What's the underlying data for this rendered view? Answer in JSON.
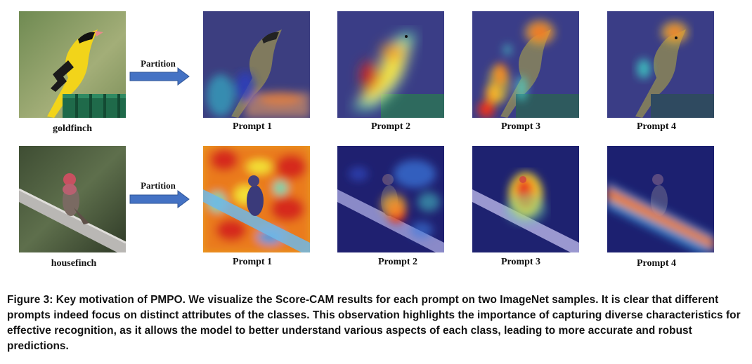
{
  "figure": {
    "rows": [
      {
        "class_label": "goldfinch",
        "partition_label": "Partition",
        "prompt_labels": [
          "Prompt 1",
          "Prompt 2",
          "Prompt 3",
          "Prompt 4"
        ]
      },
      {
        "class_label": "housefinch",
        "partition_label": "Partition",
        "prompt_labels": [
          "Prompt 1",
          "Prompt 2",
          "Prompt 3",
          "Prompt 4"
        ]
      }
    ],
    "caption": "Figure 3: Key motivation of PMPO. We visualize the Score-CAM results for each prompt on two ImageNet samples. It is clear that different prompts indeed focus on distinct attributes of the classes. This observation highlights the importance of capturing diverse characteristics for effective recognition, as it allows the model to better understand various aspects of each class, leading to more accurate and robust predictions."
  },
  "colors": {
    "arrow": "#4472c4",
    "arrow_stroke": "#2f5597",
    "cam_low": "#2a2f8c",
    "cam_high": "#e8301c"
  }
}
